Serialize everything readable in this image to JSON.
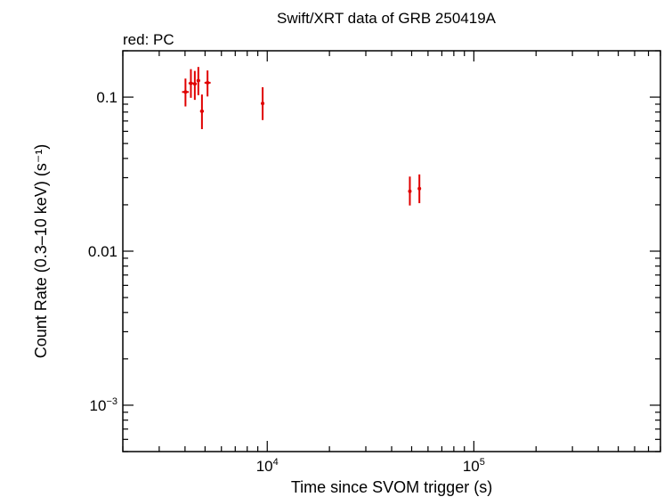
{
  "chart_data": {
    "type": "scatter",
    "title": "Swift/XRT data of GRB 250419A",
    "subtitle": "red: PC",
    "xlabel": "Time since SVOM trigger (s)",
    "ylabel": "Count Rate (0.3–10 keV) (s⁻¹)",
    "xscale": "log",
    "yscale": "log",
    "xlim": [
      2000,
      800000
    ],
    "ylim": [
      0.0005,
      0.2
    ],
    "x_ticks": [
      {
        "value": 10000,
        "base": "10",
        "exp": "4"
      },
      {
        "value": 100000,
        "base": "10",
        "exp": "5"
      }
    ],
    "y_ticks": [
      {
        "value": 0.1,
        "label": "0.1"
      },
      {
        "value": 0.01,
        "label": "0.01"
      },
      {
        "value": 0.001,
        "base": "10",
        "exp": "−3"
      }
    ],
    "grid": false,
    "color": "#e00000",
    "series": [
      {
        "name": "PC",
        "points": [
          {
            "x": 4020,
            "y": 0.108,
            "xlo": 3870,
            "xhi": 4170,
            "ylo": 0.087,
            "yhi": 0.132
          },
          {
            "x": 4270,
            "y": 0.123,
            "xlo": 4160,
            "xhi": 4380,
            "ylo": 0.099,
            "yhi": 0.152
          },
          {
            "x": 4460,
            "y": 0.122,
            "xlo": 4370,
            "xhi": 4560,
            "ylo": 0.096,
            "yhi": 0.148
          },
          {
            "x": 4640,
            "y": 0.128,
            "xlo": 4550,
            "xhi": 4730,
            "ylo": 0.103,
            "yhi": 0.157
          },
          {
            "x": 4830,
            "y": 0.081,
            "xlo": 4730,
            "xhi": 4930,
            "ylo": 0.062,
            "yhi": 0.104
          },
          {
            "x": 5140,
            "y": 0.124,
            "xlo": 4970,
            "xhi": 5320,
            "ylo": 0.101,
            "yhi": 0.149
          },
          {
            "x": 9500,
            "y": 0.091,
            "xlo": 9350,
            "xhi": 9650,
            "ylo": 0.071,
            "yhi": 0.116
          },
          {
            "x": 49000,
            "y": 0.0245,
            "xlo": 48400,
            "xhi": 49600,
            "ylo": 0.0198,
            "yhi": 0.0305
          },
          {
            "x": 54500,
            "y": 0.0255,
            "xlo": 53800,
            "xhi": 55200,
            "ylo": 0.0205,
            "yhi": 0.0315
          }
        ]
      }
    ]
  }
}
